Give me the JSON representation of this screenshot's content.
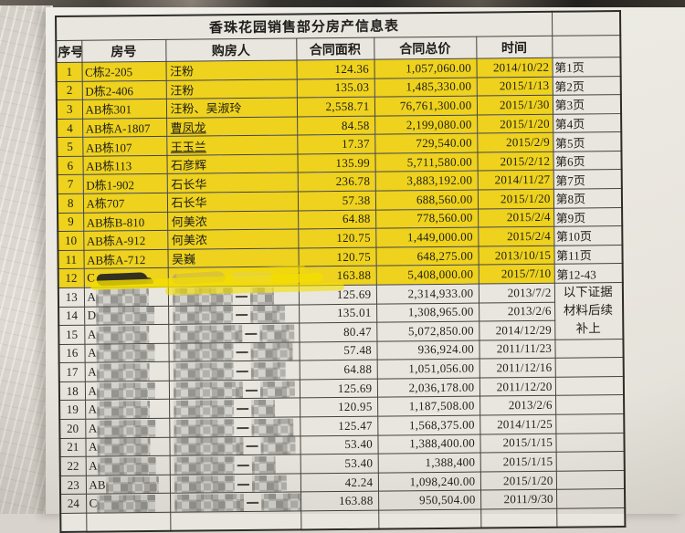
{
  "table": {
    "title": "香珠花园销售部分房产信息表",
    "headers": {
      "index": "序号",
      "room": "房号",
      "buyer": "购房人",
      "area": "合同面积",
      "price": "合同总价",
      "date": "时间",
      "page": ""
    },
    "note_lines": [
      "以下证据",
      "材料后续",
      "补上"
    ],
    "rows": [
      {
        "idx": "1",
        "room": "C栋2-205",
        "buyer": "汪粉",
        "area": "124.36",
        "price": "1,057,060.00",
        "date": "2014/10/22",
        "page": "第1页",
        "highlight": true
      },
      {
        "idx": "2",
        "room": "D栋2-406",
        "buyer": "汪粉",
        "area": "135.03",
        "price": "1,485,330.00",
        "date": "2015/1/13",
        "page": "第2页",
        "highlight": true
      },
      {
        "idx": "3",
        "room": "AB栋301",
        "buyer": "汪粉、吴淑玲",
        "area": "2,558.71",
        "price": "76,761,300.00",
        "date": "2015/1/30",
        "page": "第3页",
        "highlight": true
      },
      {
        "idx": "4",
        "room": "AB栋A-1807",
        "buyer": "曹凤龙",
        "area": "84.58",
        "price": "2,199,080.00",
        "date": "2015/1/20",
        "page": "第4页",
        "highlight": true,
        "underline": true
      },
      {
        "idx": "5",
        "room": "AB栋107",
        "buyer": "王玉兰",
        "area": "17.37",
        "price": "729,540.00",
        "date": "2015/2/9",
        "page": "第5页",
        "highlight": true,
        "underline": true
      },
      {
        "idx": "6",
        "room": "AB栋113",
        "buyer": "石彦辉",
        "area": "135.99",
        "price": "5,711,580.00",
        "date": "2015/2/12",
        "page": "第6页",
        "highlight": true
      },
      {
        "idx": "7",
        "room": "D栋1-902",
        "buyer": "石长华",
        "area": "236.78",
        "price": "3,883,192.00",
        "date": "2014/11/27",
        "page": "第7页",
        "highlight": true
      },
      {
        "idx": "8",
        "room": "A栋707",
        "buyer": "石长华",
        "area": "57.38",
        "price": "688,560.00",
        "date": "2015/1/20",
        "page": "第8页",
        "highlight": true
      },
      {
        "idx": "9",
        "room": "AB栋B-810",
        "buyer": "何美浓",
        "area": "64.88",
        "price": "778,560.00",
        "date": "2015/2/4",
        "page": "第9页",
        "highlight": true
      },
      {
        "idx": "10",
        "room": "AB栋A-912",
        "buyer": "何美浓",
        "area": "120.75",
        "price": "1,449,000.00",
        "date": "2015/2/4",
        "page": "第10页",
        "highlight": true
      },
      {
        "idx": "11",
        "room": "AB栋A-712",
        "buyer": "吴巍",
        "area": "120.75",
        "price": "648,275.00",
        "date": "2013/10/15",
        "page": "第11页",
        "highlight": true
      },
      {
        "idx": "12",
        "room": "C",
        "buyer": "",
        "area": "163.88",
        "price": "5,408,000.00",
        "date": "2015/7/10",
        "page": "第12-43",
        "highlight": true,
        "redacted": "marker"
      },
      {
        "idx": "13",
        "room": "A",
        "buyer": "",
        "area": "125.69",
        "price": "2,314,933.00",
        "date": "2013/7/2",
        "page": "",
        "redacted": "mosaic"
      },
      {
        "idx": "14",
        "room": "D",
        "buyer": "",
        "area": "135.01",
        "price": "1,308,965.00",
        "date": "2013/2/6",
        "page": "",
        "redacted": "mosaic"
      },
      {
        "idx": "15",
        "room": "A",
        "buyer": "",
        "area": "80.47",
        "price": "5,072,850.00",
        "date": "2014/12/29",
        "page": "",
        "redacted": "mosaic"
      },
      {
        "idx": "16",
        "room": "A",
        "buyer": "",
        "area": "57.48",
        "price": "936,924.00",
        "date": "2011/11/23",
        "page": "",
        "redacted": "mosaic"
      },
      {
        "idx": "17",
        "room": "A",
        "buyer": "",
        "area": "64.88",
        "price": "1,051,056.00",
        "date": "2011/12/16",
        "page": "",
        "redacted": "mosaic"
      },
      {
        "idx": "18",
        "room": "A",
        "buyer": "",
        "area": "125.69",
        "price": "2,036,178.00",
        "date": "2011/12/20",
        "page": "",
        "redacted": "mosaic"
      },
      {
        "idx": "19",
        "room": "A",
        "buyer": "",
        "area": "120.95",
        "price": "1,187,508.00",
        "date": "2013/2/6",
        "page": "",
        "redacted": "mosaic"
      },
      {
        "idx": "20",
        "room": "A",
        "buyer": "",
        "area": "125.47",
        "price": "1,568,375.00",
        "date": "2014/11/25",
        "page": "",
        "redacted": "mosaic"
      },
      {
        "idx": "21",
        "room": "A",
        "buyer": "",
        "area": "53.40",
        "price": "1,388,400.00",
        "date": "2015/1/15",
        "page": "",
        "redacted": "mosaic"
      },
      {
        "idx": "22",
        "room": "A",
        "buyer": "",
        "area": "53.40",
        "price": "1,388,400",
        "date": "2015/1/15",
        "page": "",
        "redacted": "mosaic"
      },
      {
        "idx": "23",
        "room": "AB",
        "buyer": "",
        "area": "42.24",
        "price": "1,098,240.00",
        "date": "2015/1/20",
        "page": "",
        "redacted": "mosaic"
      },
      {
        "idx": "24",
        "room": "C",
        "buyer": "",
        "area": "163.88",
        "price": "950,504.00",
        "date": "2011/9/30",
        "page": "",
        "redacted": "mosaic"
      }
    ],
    "colors": {
      "highlight_yellow": "#eed21d",
      "marker_yellow": "#f3de00",
      "paper": "#ebe8e1",
      "wall": "#d8d4cd",
      "border": "#45423c",
      "text": "#1f1e1b",
      "smudge_black": "#33301f",
      "smudge_tan": "#c4aa6c"
    }
  }
}
